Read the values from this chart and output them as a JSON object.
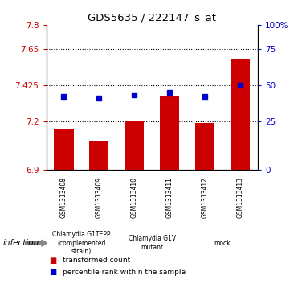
{
  "title": "GDS5635 / 222147_s_at",
  "samples": [
    "GSM1313408",
    "GSM1313409",
    "GSM1313410",
    "GSM1313411",
    "GSM1313412",
    "GSM1313413"
  ],
  "bar_values": [
    7.155,
    7.08,
    7.205,
    7.36,
    7.19,
    7.59
  ],
  "bar_bottom": 6.9,
  "percentile_values": [
    7.355,
    7.345,
    7.365,
    7.38,
    7.355,
    7.425
  ],
  "bar_color": "#cc0000",
  "dot_color": "#0000cc",
  "ylim": [
    6.9,
    7.8
  ],
  "yticks_left": [
    6.9,
    7.2,
    7.425,
    7.65,
    7.8
  ],
  "ytick_labels_left": [
    "6.9",
    "7.2",
    "7.425",
    "7.65",
    "7.8"
  ],
  "ytick_labels_right": [
    "0",
    "25",
    "50",
    "75",
    "100%"
  ],
  "hlines": [
    7.2,
    7.425,
    7.65
  ],
  "group_spans": [
    {
      "start": 0,
      "end": 2,
      "label": "Chlamydia G1TEPP\n(complemented\nstrain)",
      "color": "#c8f0c8"
    },
    {
      "start": 2,
      "end": 4,
      "label": "Chlamydia G1V\nmutant",
      "color": "#c8f0c8"
    },
    {
      "start": 4,
      "end": 6,
      "label": "mock",
      "color": "#44cc44"
    }
  ],
  "sample_box_color": "#d0d0d0",
  "infection_label": "infection",
  "legend_items": [
    {
      "color": "#cc0000",
      "label": "transformed count"
    },
    {
      "color": "#0000cc",
      "label": "percentile rank within the sample"
    }
  ]
}
